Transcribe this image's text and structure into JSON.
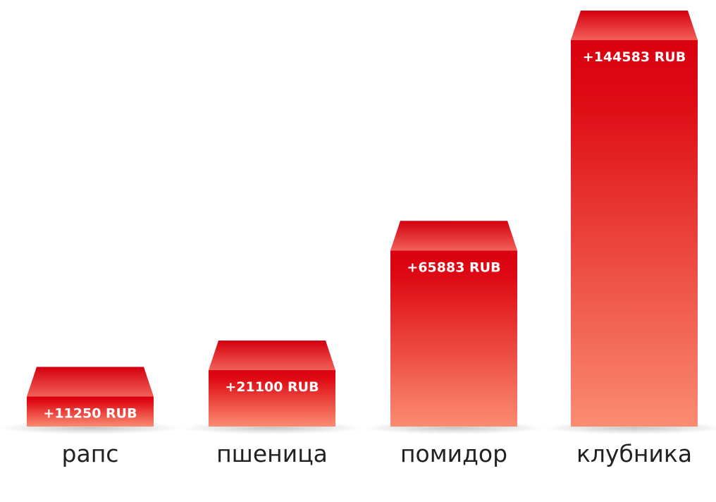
{
  "chart_data": {
    "type": "bar",
    "categories": [
      "рапс",
      "пшеница",
      "помидор",
      "клубника"
    ],
    "values": [
      11250,
      21100,
      65883,
      144583
    ],
    "value_labels": [
      "+11250 RUB",
      "+21100 RUB",
      "+65883 RUB",
      "+144583 RUB"
    ],
    "color": "#e0101a"
  }
}
